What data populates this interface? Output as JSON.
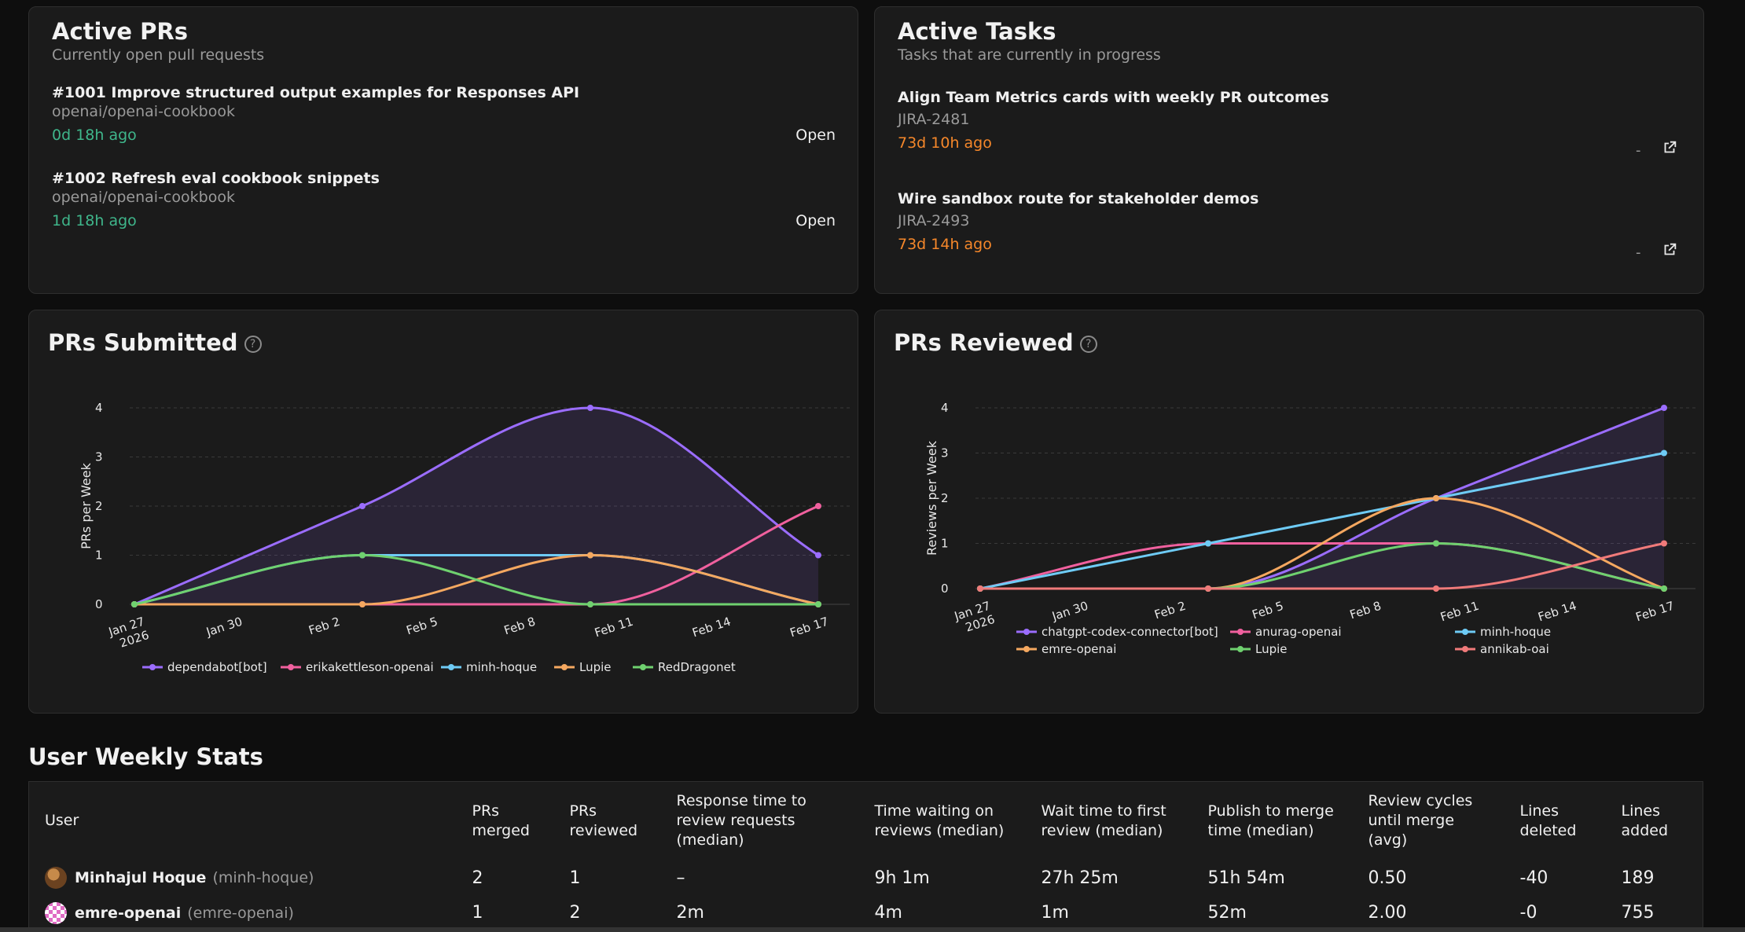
{
  "active_prs": {
    "title": "Active PRs",
    "subtitle": "Currently open pull requests",
    "items": [
      {
        "title": "#1001 Improve structured output examples for Responses API",
        "repo": "openai/openai-cookbook",
        "age": "0d 18h ago",
        "status": "Open"
      },
      {
        "title": "#1002 Refresh eval cookbook snippets",
        "repo": "openai/openai-cookbook",
        "age": "1d 18h ago",
        "status": "Open"
      }
    ]
  },
  "active_tasks": {
    "title": "Active Tasks",
    "subtitle": "Tasks that are currently in progress",
    "items": [
      {
        "title": "Align Team Metrics cards with weekly PR outcomes",
        "key": "JIRA-2481",
        "age": "73d 10h ago",
        "assignee": "-",
        "icon": "external-link-icon"
      },
      {
        "title": "Wire sandbox route for stakeholder demos",
        "key": "JIRA-2493",
        "age": "73d 14h ago",
        "assignee": "-",
        "icon": "external-link-icon"
      }
    ]
  },
  "prs_submitted": {
    "title": "PRs Submitted",
    "help_icon": "?"
  },
  "prs_reviewed": {
    "title": "PRs Reviewed",
    "help_icon": "?"
  },
  "chart_data": [
    {
      "type": "line",
      "title": "PRs Submitted",
      "ylabel": "PRs per Week",
      "xlabel": "",
      "x_tick_labels": [
        "Jan 27\n2026",
        "Jan 30",
        "Feb 2",
        "Feb 5",
        "Feb 8",
        "Feb 11",
        "Feb 14",
        "Feb 17"
      ],
      "x_points": [
        "Jan 26",
        "Feb 2",
        "Feb 9",
        "Feb 16"
      ],
      "ylim": [
        0,
        4
      ],
      "y_ticks": [
        0,
        1,
        2,
        3,
        4
      ],
      "grid": true,
      "legend_position": "bottom",
      "series": [
        {
          "name": "dependabot[bot]",
          "color": "#9b6dff",
          "values": [
            0,
            2,
            4,
            1
          ],
          "fill": true
        },
        {
          "name": "erikakettleson-openai",
          "color": "#f0609e",
          "values": [
            0,
            0,
            0,
            2
          ]
        },
        {
          "name": "minh-hoque",
          "color": "#6ecbf5",
          "values": [
            0,
            1,
            1,
            0
          ]
        },
        {
          "name": "Lupie",
          "color": "#f5a860",
          "values": [
            0,
            0,
            1,
            0
          ]
        },
        {
          "name": "RedDragonet",
          "color": "#6fd16f",
          "values": [
            0,
            1,
            0,
            0
          ]
        }
      ]
    },
    {
      "type": "line",
      "title": "PRs Reviewed",
      "ylabel": "Reviews per Week",
      "xlabel": "",
      "x_tick_labels": [
        "Jan 27\n2026",
        "Jan 30",
        "Feb 2",
        "Feb 5",
        "Feb 8",
        "Feb 11",
        "Feb 14",
        "Feb 17"
      ],
      "x_points": [
        "Jan 26",
        "Feb 2",
        "Feb 9",
        "Feb 16"
      ],
      "ylim": [
        0,
        4
      ],
      "y_ticks": [
        0,
        1,
        2,
        3,
        4
      ],
      "grid": true,
      "legend_position": "bottom",
      "series": [
        {
          "name": "chatgpt-codex-connector[bot]",
          "color": "#9b6dff",
          "values": [
            0,
            0,
            2,
            4
          ],
          "fill": true
        },
        {
          "name": "anurag-openai",
          "color": "#f0609e",
          "values": [
            0,
            1,
            1,
            0
          ]
        },
        {
          "name": "minh-hoque",
          "color": "#6ecbf5",
          "values": [
            0,
            1,
            2,
            3
          ]
        },
        {
          "name": "emre-openai",
          "color": "#f5a860",
          "values": [
            0,
            0,
            2,
            0
          ]
        },
        {
          "name": "Lupie",
          "color": "#6fd16f",
          "values": [
            0,
            0,
            1,
            0
          ]
        },
        {
          "name": "annikab-oai",
          "color": "#f07a7a",
          "values": [
            0,
            0,
            0,
            1
          ]
        }
      ]
    }
  ],
  "user_weekly_stats": {
    "title": "User Weekly Stats",
    "columns": [
      "User",
      "PRs merged",
      "PRs reviewed",
      "Response time to review requests (median)",
      "Time waiting on reviews (median)",
      "Wait time to first review (median)",
      "Publish to merge time (median)",
      "Review cycles until merge (avg)",
      "Lines deleted",
      "Lines added"
    ],
    "rows": [
      {
        "name": "Minhajul Hoque",
        "login": "(minh-hoque)",
        "avatar_color": "#8a5a2b",
        "merged": "2",
        "reviewed": "1",
        "response": "–",
        "waiting": "9h 1m",
        "first_review": "27h 25m",
        "publish_merge": "51h 54m",
        "cycles": "0.50",
        "deleted": "-40",
        "added": "189"
      },
      {
        "name": "emre-openai",
        "login": "(emre-openai)",
        "avatar_color": "#d05ab0",
        "merged": "1",
        "reviewed": "2",
        "response": "2m",
        "waiting": "4m",
        "first_review": "1m",
        "publish_merge": "52m",
        "cycles": "2.00",
        "deleted": "-0",
        "added": "755"
      }
    ]
  }
}
